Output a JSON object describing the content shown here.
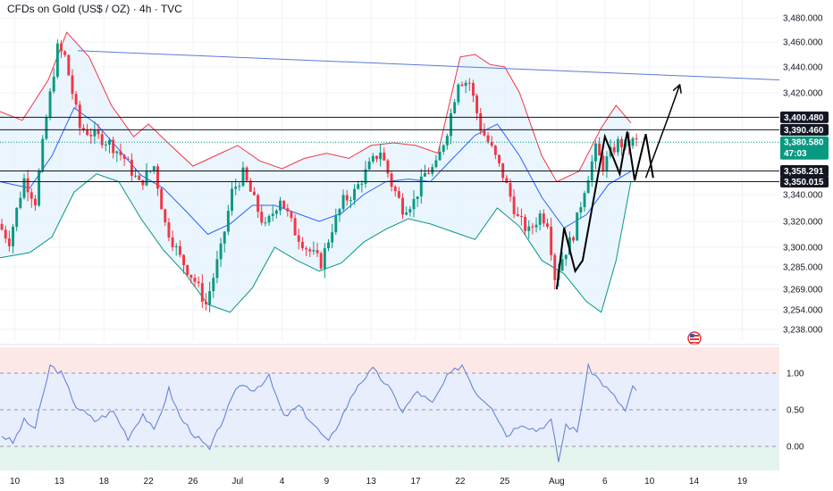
{
  "header": {
    "title": "CFDs on Gold (US$ / OZ) · 4h · TVC"
  },
  "colors": {
    "up": "#089981",
    "down": "#f23645",
    "upper_band": "#f23645",
    "lower_band": "#089981",
    "basis": "#2962ff",
    "band_fill": "#e3f2fd",
    "trendline": "#5b7bd6",
    "level": "#131722",
    "rsi_line": "#5b7bd6",
    "price_tag": "#089981"
  },
  "chart_data": [
    {
      "type": "candlestick",
      "title": "CFDs on Gold (US$ / OZ) · 4h · TVC",
      "ylim": [
        3230,
        3490
      ],
      "price_ticks": [
        "3,480.000",
        "3,460.000",
        "3,440.000",
        "3,420.000",
        "3,400.000",
        "3,380.000",
        "3,360.000",
        "3,340.000",
        "3,320.000",
        "3,300.000",
        "3,285.000",
        "3,269.000",
        "3,254.000",
        "3,238.000"
      ],
      "price_tick_values": [
        3480,
        3460,
        3440,
        3420,
        3400,
        3380,
        3360,
        3340,
        3320,
        3300,
        3285,
        3269,
        3254,
        3238
      ],
      "date_ticks": [
        "10",
        "13",
        "18",
        "22",
        "26",
        "Jul",
        "4",
        "9",
        "13",
        "17",
        "22",
        "25",
        "Aug",
        "6",
        "10",
        "14",
        "19"
      ],
      "bar_range": [
        0,
        210
      ],
      "date_tick_bars": [
        4,
        16,
        28,
        40,
        52,
        64,
        76,
        88,
        100,
        112,
        124,
        136,
        150,
        163,
        175,
        187,
        200
      ],
      "anchors": [
        [
          0,
          3318
        ],
        [
          3,
          3305
        ],
        [
          7,
          3352
        ],
        [
          10,
          3335
        ],
        [
          13,
          3400
        ],
        [
          16,
          3455
        ],
        [
          18,
          3448
        ],
        [
          22,
          3392
        ],
        [
          26,
          3386
        ],
        [
          30,
          3380
        ],
        [
          34,
          3368
        ],
        [
          38,
          3348
        ],
        [
          42,
          3362
        ],
        [
          45,
          3318
        ],
        [
          49,
          3292
        ],
        [
          53,
          3275
        ],
        [
          56,
          3258
        ],
        [
          60,
          3298
        ],
        [
          63,
          3342
        ],
        [
          66,
          3356
        ],
        [
          69,
          3335
        ],
        [
          72,
          3315
        ],
        [
          76,
          3338
        ],
        [
          80,
          3312
        ],
        [
          83,
          3300
        ],
        [
          87,
          3288
        ],
        [
          90,
          3315
        ],
        [
          93,
          3335
        ],
        [
          96,
          3342
        ],
        [
          100,
          3362
        ],
        [
          103,
          3374
        ],
        [
          106,
          3348
        ],
        [
          109,
          3330
        ],
        [
          112,
          3335
        ],
        [
          115,
          3356
        ],
        [
          118,
          3362
        ],
        [
          121,
          3390
        ],
        [
          124,
          3430
        ],
        [
          127,
          3428
        ],
        [
          130,
          3392
        ],
        [
          133,
          3375
        ],
        [
          136,
          3355
        ],
        [
          140,
          3322
        ],
        [
          143,
          3312
        ],
        [
          146,
          3325
        ],
        [
          148,
          3320
        ],
        [
          150,
          3278
        ],
        [
          152,
          3292
        ],
        [
          155,
          3310
        ],
        [
          158,
          3345
        ],
        [
          161,
          3375
        ],
        [
          163,
          3362
        ],
        [
          165,
          3372
        ],
        [
          167,
          3380
        ],
        [
          169,
          3378
        ],
        [
          171,
          3381
        ]
      ],
      "bollinger": {
        "upper": [
          [
            0,
            3405
          ],
          [
            6,
            3398
          ],
          [
            13,
            3430
          ],
          [
            18,
            3468
          ],
          [
            24,
            3448
          ],
          [
            30,
            3410
          ],
          [
            36,
            3385
          ],
          [
            40,
            3395
          ],
          [
            46,
            3378
          ],
          [
            52,
            3362
          ],
          [
            58,
            3370
          ],
          [
            64,
            3378
          ],
          [
            70,
            3366
          ],
          [
            76,
            3360
          ],
          [
            82,
            3368
          ],
          [
            88,
            3372
          ],
          [
            94,
            3368
          ],
          [
            100,
            3378
          ],
          [
            106,
            3380
          ],
          [
            112,
            3378
          ],
          [
            118,
            3372
          ],
          [
            124,
            3448
          ],
          [
            128,
            3450
          ],
          [
            132,
            3442
          ],
          [
            136,
            3440
          ],
          [
            140,
            3420
          ],
          [
            146,
            3370
          ],
          [
            150,
            3350
          ],
          [
            156,
            3358
          ],
          [
            162,
            3392
          ],
          [
            166,
            3410
          ],
          [
            170,
            3396
          ]
        ],
        "basis": [
          [
            0,
            3350
          ],
          [
            8,
            3345
          ],
          [
            14,
            3370
          ],
          [
            20,
            3408
          ],
          [
            26,
            3395
          ],
          [
            32,
            3375
          ],
          [
            38,
            3355
          ],
          [
            44,
            3345
          ],
          [
            50,
            3328
          ],
          [
            56,
            3310
          ],
          [
            62,
            3318
          ],
          [
            68,
            3332
          ],
          [
            74,
            3332
          ],
          [
            80,
            3326
          ],
          [
            86,
            3320
          ],
          [
            92,
            3326
          ],
          [
            98,
            3340
          ],
          [
            104,
            3350
          ],
          [
            110,
            3352
          ],
          [
            116,
            3350
          ],
          [
            122,
            3368
          ],
          [
            128,
            3386
          ],
          [
            134,
            3395
          ],
          [
            140,
            3370
          ],
          [
            146,
            3338
          ],
          [
            152,
            3315
          ],
          [
            158,
            3325
          ],
          [
            164,
            3348
          ],
          [
            170,
            3358
          ]
        ],
        "lower": [
          [
            0,
            3292
          ],
          [
            8,
            3296
          ],
          [
            14,
            3308
          ],
          [
            20,
            3342
          ],
          [
            26,
            3356
          ],
          [
            32,
            3350
          ],
          [
            38,
            3322
          ],
          [
            44,
            3298
          ],
          [
            50,
            3280
          ],
          [
            56,
            3258
          ],
          [
            62,
            3252
          ],
          [
            68,
            3270
          ],
          [
            74,
            3300
          ],
          [
            80,
            3290
          ],
          [
            86,
            3282
          ],
          [
            92,
            3288
          ],
          [
            98,
            3304
          ],
          [
            104,
            3314
          ],
          [
            110,
            3322
          ],
          [
            116,
            3318
          ],
          [
            122,
            3312
          ],
          [
            128,
            3306
          ],
          [
            134,
            3330
          ],
          [
            140,
            3316
          ],
          [
            146,
            3290
          ],
          [
            152,
            3280
          ],
          [
            158,
            3260
          ],
          [
            162,
            3252
          ],
          [
            166,
            3290
          ],
          [
            170,
            3350
          ]
        ]
      },
      "trendline": [
        [
          21,
          3453
        ],
        [
          210,
          3430
        ]
      ],
      "levels": [
        {
          "value": 3400.48,
          "label": "3,400.480"
        },
        {
          "value": 3390.46,
          "label": "3,390.460"
        },
        {
          "value": 3358.291,
          "label": "3,358.291"
        },
        {
          "value": 3350.015,
          "label": "3,350.015"
        }
      ],
      "current": {
        "value": 3380.58,
        "label": "3,380.580",
        "countdown": "47:03"
      },
      "drawing_path": [
        [
          150,
          3269
        ],
        [
          152,
          3315
        ],
        [
          155,
          3282
        ],
        [
          157,
          3290
        ],
        [
          163,
          3385
        ],
        [
          167,
          3356
        ],
        [
          169,
          3389
        ],
        [
          171,
          3351
        ],
        [
          174,
          3387
        ],
        [
          176,
          3353
        ]
      ],
      "projection": [
        [
          174,
          3353
        ],
        [
          180,
          3400
        ],
        [
          183,
          3425
        ]
      ]
    },
    {
      "type": "line",
      "title": "",
      "ylim": [
        -0.3,
        1.4
      ],
      "ticks": [
        "1.00",
        "0.50",
        "0.00"
      ],
      "tick_values": [
        1.0,
        0.5,
        0.0
      ],
      "anchors": [
        [
          0,
          0.15
        ],
        [
          3,
          0.05
        ],
        [
          6,
          0.35
        ],
        [
          9,
          0.25
        ],
        [
          13,
          1.1
        ],
        [
          16,
          1.0
        ],
        [
          20,
          0.55
        ],
        [
          25,
          0.35
        ],
        [
          30,
          0.48
        ],
        [
          34,
          0.12
        ],
        [
          38,
          0.45
        ],
        [
          41,
          0.2
        ],
        [
          45,
          0.78
        ],
        [
          48,
          0.4
        ],
        [
          52,
          0.15
        ],
        [
          56,
          -0.05
        ],
        [
          60,
          0.42
        ],
        [
          64,
          0.85
        ],
        [
          68,
          0.78
        ],
        [
          72,
          0.95
        ],
        [
          76,
          0.4
        ],
        [
          80,
          0.55
        ],
        [
          84,
          0.3
        ],
        [
          88,
          0.05
        ],
        [
          92,
          0.45
        ],
        [
          96,
          0.85
        ],
        [
          100,
          1.05
        ],
        [
          104,
          0.82
        ],
        [
          108,
          0.48
        ],
        [
          112,
          0.75
        ],
        [
          116,
          0.58
        ],
        [
          120,
          0.95
        ],
        [
          124,
          1.12
        ],
        [
          128,
          0.72
        ],
        [
          132,
          0.55
        ],
        [
          136,
          0.15
        ],
        [
          140,
          0.32
        ],
        [
          144,
          0.22
        ],
        [
          148,
          0.35
        ],
        [
          150,
          -0.2
        ],
        [
          152,
          0.3
        ],
        [
          155,
          0.2
        ],
        [
          158,
          1.08
        ],
        [
          162,
          0.85
        ],
        [
          166,
          0.62
        ],
        [
          168,
          0.48
        ],
        [
          170,
          0.8
        ],
        [
          171,
          0.75
        ]
      ]
    }
  ]
}
